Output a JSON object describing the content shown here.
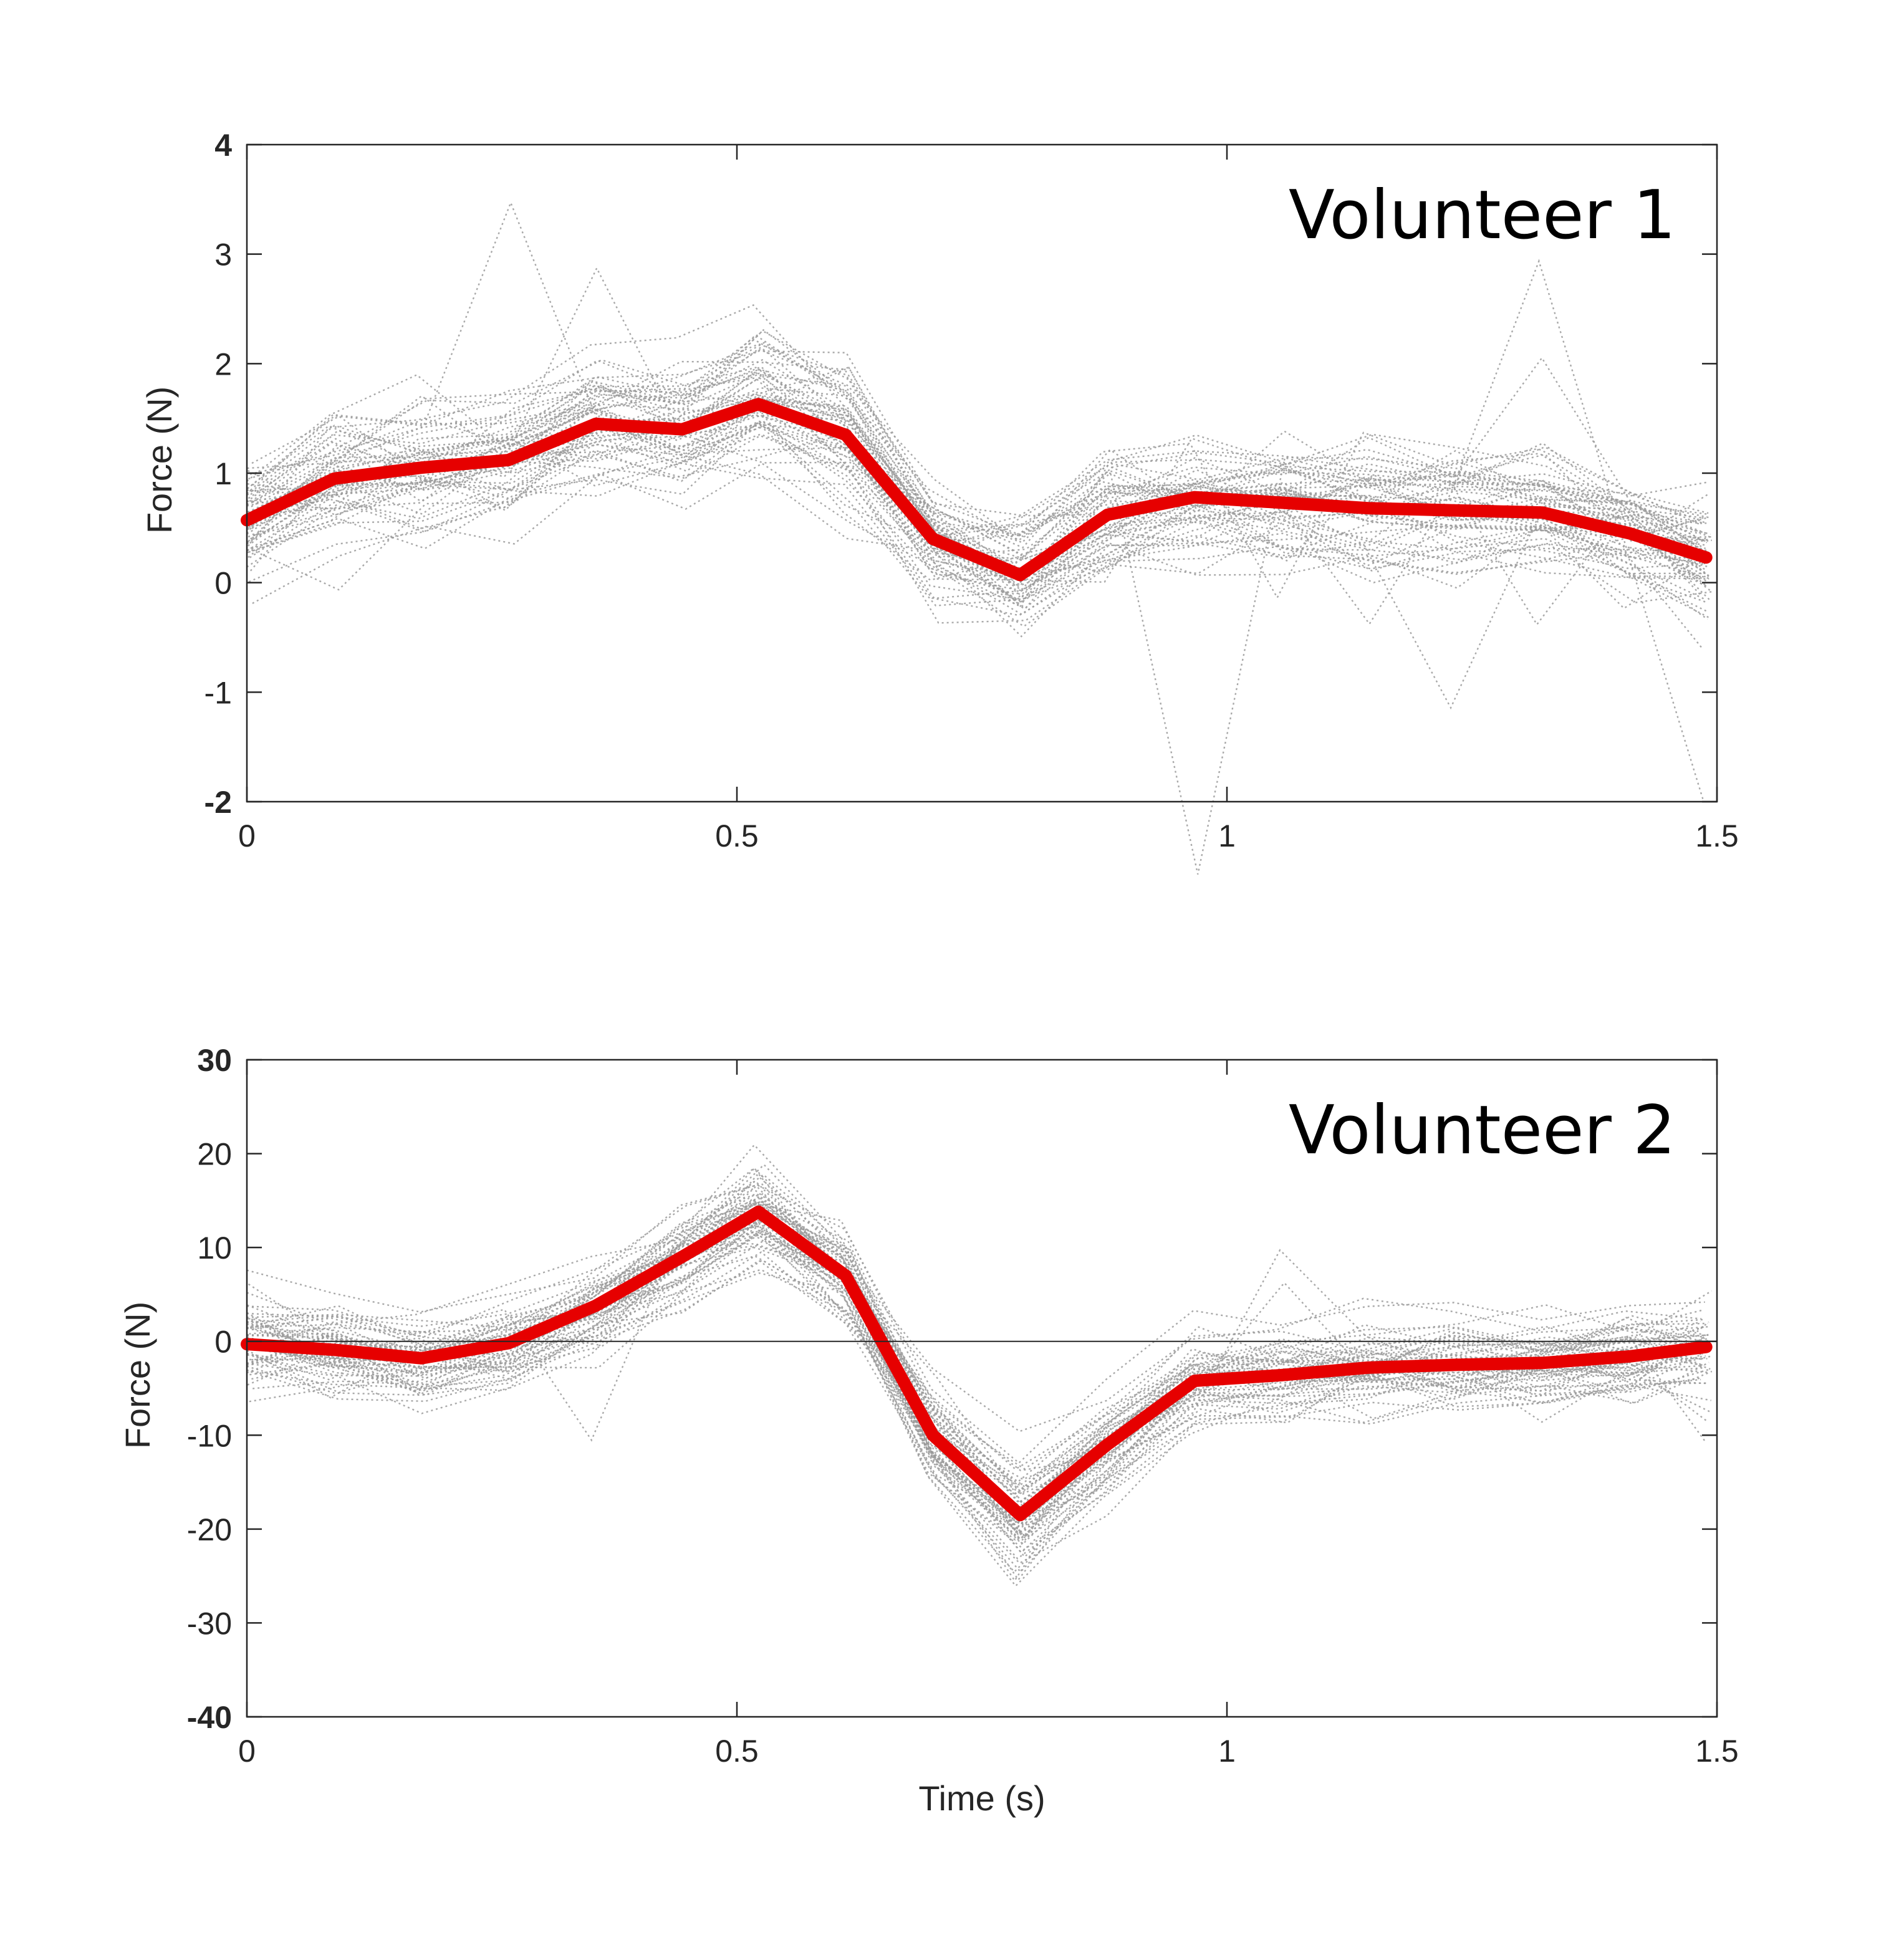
{
  "chart_data": [
    {
      "type": "line",
      "title": "Volunteer 1",
      "xlabel": "",
      "ylabel": "Force (N)",
      "xlim": [
        0,
        1.5
      ],
      "ylim": [
        -2,
        4
      ],
      "xticks": [
        "0",
        "0.5",
        "1",
        "1.5"
      ],
      "yticks": [
        "4",
        "3",
        "2",
        "1",
        "0",
        "-1",
        "-2"
      ],
      "grid": false,
      "zero_line": false,
      "mean_color": "#e60000",
      "trial_color": "#9a9a9a",
      "trial_count": 60,
      "trial_spread": 0.28,
      "x": [
        0,
        0.089,
        0.178,
        0.267,
        0.356,
        0.444,
        0.522,
        0.611,
        0.7,
        0.789,
        0.878,
        0.967,
        1.056,
        1.144,
        1.233,
        1.322,
        1.411,
        1.489
      ],
      "series": [
        {
          "role": "mean",
          "values": [
            0.57,
            0.95,
            1.05,
            1.12,
            1.45,
            1.4,
            1.63,
            1.35,
            0.4,
            0.07,
            0.62,
            0.78,
            0.73,
            0.68,
            0.66,
            0.64,
            0.45,
            0.23
          ]
        }
      ]
    },
    {
      "type": "line",
      "title": "Volunteer 2",
      "xlabel": "Time (s)",
      "ylabel": "Force (N)",
      "xlim": [
        0,
        1.5
      ],
      "ylim": [
        -40,
        30
      ],
      "xticks": [
        "0",
        "0.5",
        "1",
        "1.5"
      ],
      "yticks": [
        "30",
        "20",
        "10",
        "0",
        "-10",
        "-20",
        "-30",
        "-40"
      ],
      "grid": false,
      "zero_line": true,
      "mean_color": "#e60000",
      "trial_color": "#9a9a9a",
      "trial_count": 60,
      "trial_spread": 2.5,
      "x": [
        0,
        0.089,
        0.178,
        0.267,
        0.356,
        0.444,
        0.522,
        0.611,
        0.7,
        0.789,
        0.878,
        0.967,
        1.056,
        1.144,
        1.233,
        1.322,
        1.411,
        1.489
      ],
      "series": [
        {
          "role": "mean",
          "values": [
            -0.3,
            -0.9,
            -1.8,
            -0.2,
            3.8,
            9.0,
            13.8,
            7.0,
            -10.0,
            -18.5,
            -11.0,
            -4.2,
            -3.6,
            -2.8,
            -2.5,
            -2.3,
            -1.6,
            -0.6
          ]
        }
      ]
    }
  ]
}
